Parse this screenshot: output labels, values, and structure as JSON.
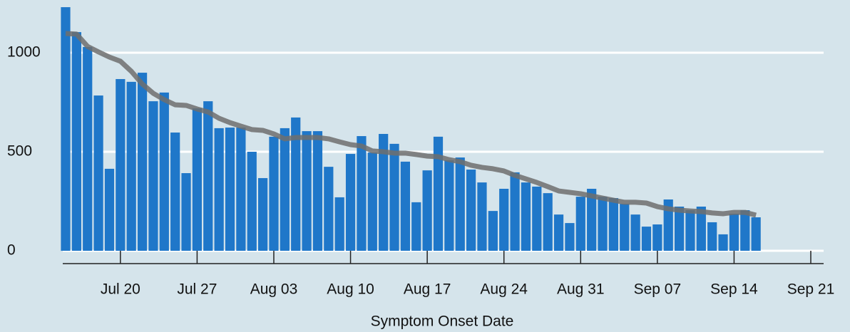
{
  "chart_data": {
    "type": "bar",
    "x_label": "Symptom Onset Date",
    "x": [
      "Jul 15",
      "Jul 16",
      "Jul 17",
      "Jul 18",
      "Jul 19",
      "Jul 20",
      "Jul 21",
      "Jul 22",
      "Jul 23",
      "Jul 24",
      "Jul 25",
      "Jul 26",
      "Jul 27",
      "Jul 28",
      "Jul 29",
      "Jul 30",
      "Jul 31",
      "Aug 01",
      "Aug 02",
      "Aug 03",
      "Aug 04",
      "Aug 05",
      "Aug 06",
      "Aug 07",
      "Aug 08",
      "Aug 09",
      "Aug 10",
      "Aug 11",
      "Aug 12",
      "Aug 13",
      "Aug 14",
      "Aug 15",
      "Aug 16",
      "Aug 17",
      "Aug 18",
      "Aug 19",
      "Aug 20",
      "Aug 21",
      "Aug 22",
      "Aug 23",
      "Aug 24",
      "Aug 25",
      "Aug 26",
      "Aug 27",
      "Aug 28",
      "Aug 29",
      "Aug 30",
      "Aug 31",
      "Sep 01",
      "Sep 02",
      "Sep 03",
      "Sep 04",
      "Sep 05",
      "Sep 06",
      "Sep 07",
      "Sep 08",
      "Sep 09",
      "Sep 10",
      "Sep 11",
      "Sep 12",
      "Sep 13",
      "Sep 14",
      "Sep 15",
      "Sep 16"
    ],
    "series": [
      {
        "type": "bar",
        "color": "#1f77c9",
        "values": [
          1230,
          1104,
          1029,
          784,
          414,
          867,
          853,
          899,
          755,
          799,
          597,
          392,
          719,
          755,
          619,
          622,
          622,
          500,
          367,
          576,
          619,
          673,
          604,
          604,
          424,
          270,
          489,
          579,
          496,
          590,
          540,
          450,
          245,
          406,
          576,
          457,
          471,
          410,
          345,
          201,
          313,
          396,
          345,
          324,
          291,
          183,
          140,
          273,
          313,
          273,
          266,
          237,
          183,
          122,
          133,
          259,
          223,
          205,
          223,
          144,
          83,
          187,
          205,
          169
        ]
      },
      {
        "type": "line",
        "color": "#6e6e6e",
        "values": [
          1097,
          1094,
          1032,
          1004,
          978,
          957,
          906,
          842,
          795,
          763,
          737,
          734,
          716,
          701,
          669,
          647,
          629,
          612,
          608,
          590,
          565,
          572,
          572,
          572,
          565,
          550,
          536,
          529,
          504,
          500,
          493,
          493,
          486,
          478,
          475,
          460,
          450,
          432,
          421,
          414,
          403,
          381,
          363,
          345,
          324,
          302,
          295,
          288,
          277,
          266,
          255,
          245,
          245,
          241,
          223,
          212,
          205,
          201,
          198,
          191,
          187,
          194,
          194,
          180
        ]
      }
    ],
    "xlim": [
      "Jul 15",
      "Sep 21"
    ],
    "xticks": [
      "Jul 20",
      "Jul 27",
      "Aug 03",
      "Aug 10",
      "Aug 17",
      "Aug 24",
      "Aug 31",
      "Sep 07",
      "Sep 14",
      "Sep 21"
    ],
    "ylim": [
      0,
      1250
    ],
    "yticks": [
      0,
      500,
      1000
    ],
    "grid": true
  }
}
